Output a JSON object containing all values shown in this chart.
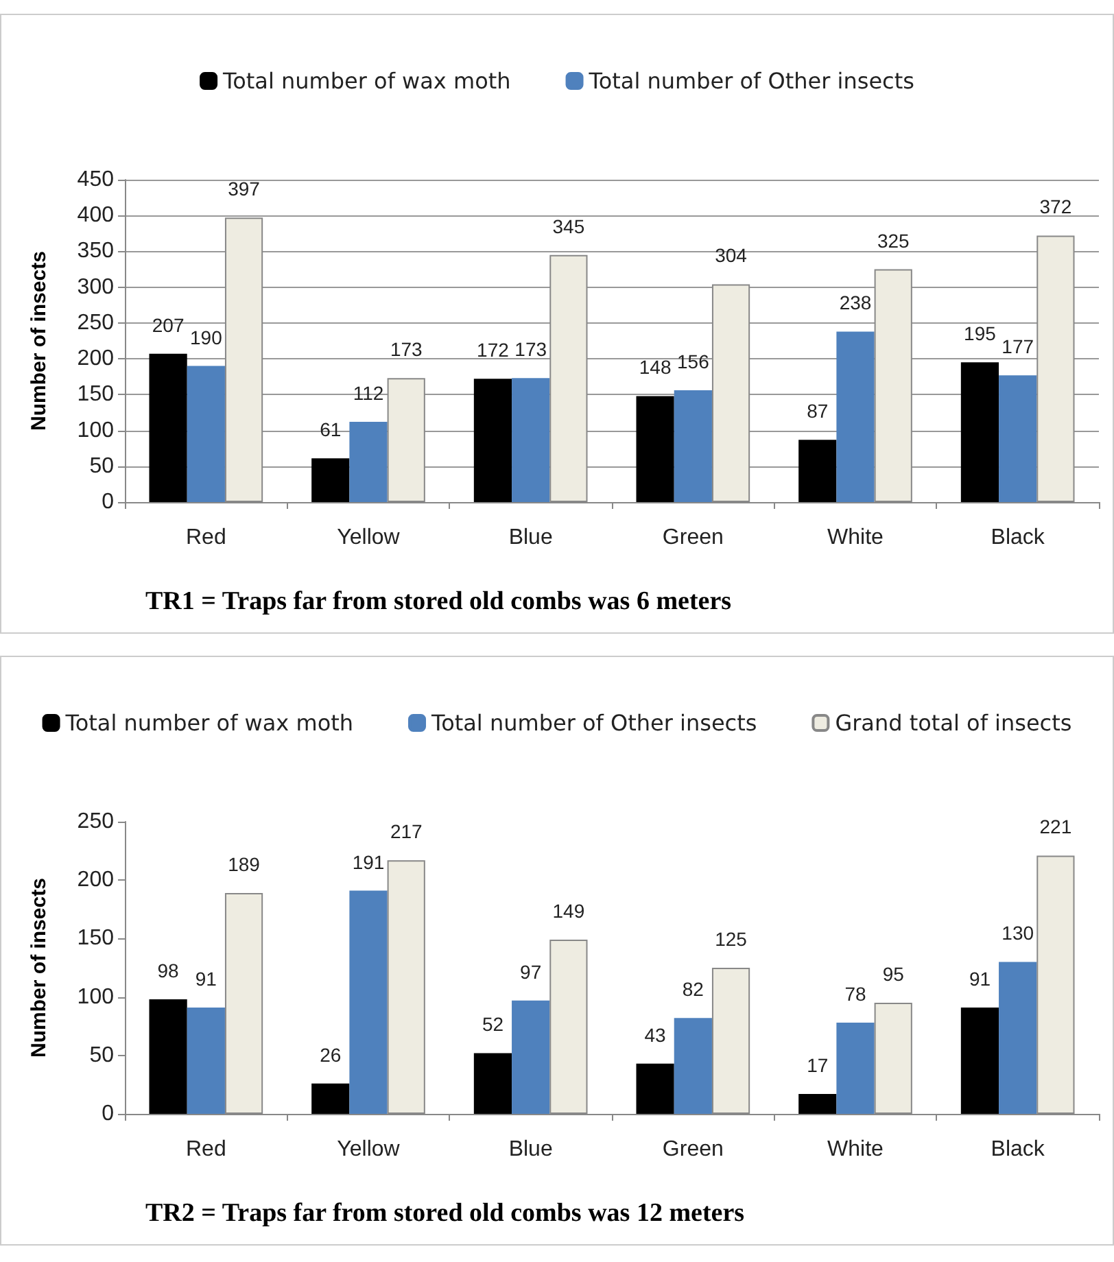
{
  "chart_data": [
    {
      "type": "bar",
      "title": "TR1 = Traps far from stored old combs was 6 meters",
      "ylabel": "Number of insects",
      "categories": [
        "Red",
        "Yellow",
        "Blue",
        "Green",
        "White",
        "Black"
      ],
      "series": [
        {
          "name": "Total number of wax moth",
          "color": "#000000",
          "values": [
            207,
            61,
            172,
            148,
            87,
            195
          ]
        },
        {
          "name": "Total number of Other insects",
          "color": "#4f81bd",
          "values": [
            190,
            112,
            173,
            156,
            238,
            177
          ]
        },
        {
          "color": "#eeece1",
          "values": [
            397,
            173,
            345,
            304,
            325,
            372
          ]
        }
      ],
      "ylim": [
        0,
        450
      ],
      "yticks": [
        0,
        50,
        100,
        150,
        200,
        250,
        300,
        350,
        400,
        450
      ],
      "grid": "y",
      "legend": "top",
      "data_labels": true
    },
    {
      "type": "bar",
      "title": "TR2 = Traps far from stored old combs was 12 meters",
      "ylabel": "Number of insects",
      "categories": [
        "Red",
        "Yellow",
        "Blue",
        "Green",
        "White",
        "Black"
      ],
      "series": [
        {
          "name": "Total number of wax moth",
          "color": "#000000",
          "values": [
            98,
            26,
            52,
            43,
            17,
            91
          ]
        },
        {
          "name": "Total number of Other insects",
          "color": "#4f81bd",
          "values": [
            91,
            191,
            97,
            82,
            78,
            130
          ]
        },
        {
          "name": "Grand total of insects",
          "color": "#eeece1",
          "values": [
            189,
            217,
            149,
            125,
            95,
            221
          ]
        }
      ],
      "ylim": [
        0,
        250
      ],
      "yticks": [
        0,
        50,
        100,
        150,
        200,
        250
      ],
      "legend": "top",
      "data_labels": true
    }
  ]
}
